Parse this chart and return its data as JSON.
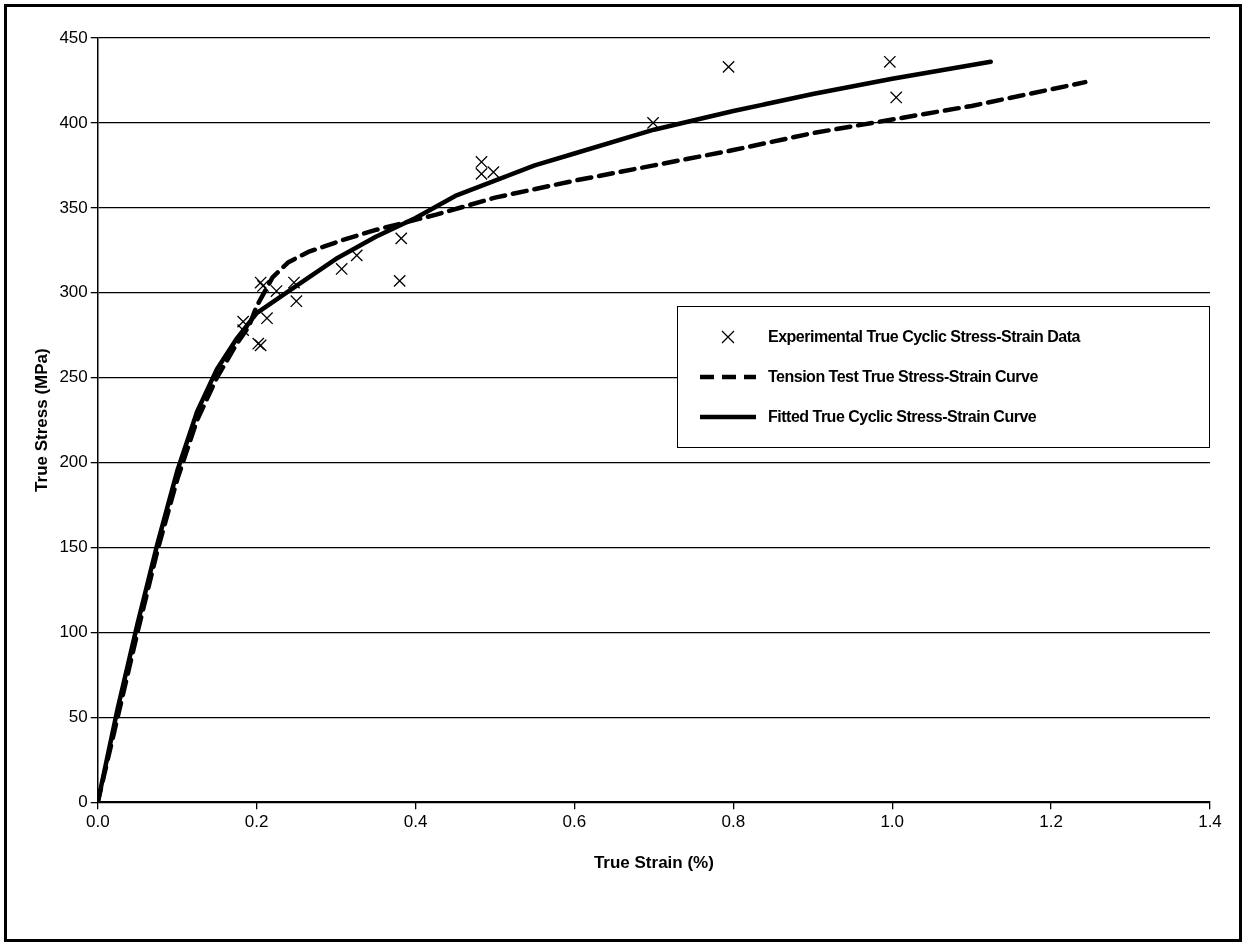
{
  "chart_data": {
    "type": "line",
    "xlabel": "True Strain (%)",
    "ylabel": "True Stress (MPa)",
    "xlim": [
      0,
      1.4
    ],
    "xticks": [
      {
        "value": 0,
        "label": "0.0"
      },
      0.2,
      0.4,
      0.6,
      0.8,
      {
        "value": 1,
        "label": "1.0"
      },
      1.2,
      1.4
    ],
    "ylim": [
      0,
      450
    ],
    "yticks": [
      0,
      50,
      100,
      150,
      200,
      250,
      300,
      350,
      400,
      450
    ],
    "grid": "y",
    "legend": "right",
    "series": [
      {
        "name": "Experimental True Cyclic Stress-Strain Data",
        "type": "scatter",
        "marker": "cross",
        "color": "#000000",
        "x": [
          0.205,
          0.208,
          0.225,
          0.247,
          0.25,
          0.183,
          0.183,
          0.213,
          0.202,
          0.205,
          0.307,
          0.326,
          0.382,
          0.38,
          0.483,
          0.483,
          0.498,
          0.699,
          0.794,
          0.997,
          1.005
        ],
        "values": [
          306,
          304,
          301,
          306,
          295,
          283,
          278,
          285,
          270,
          269,
          314,
          322,
          332,
          307,
          377,
          370,
          371,
          400,
          433,
          436,
          415
        ]
      },
      {
        "name": "Tension Test True Stress-Strain Curve",
        "line_style": "dashed",
        "color": "#000000",
        "x": [
          0,
          0.025,
          0.05,
          0.075,
          0.1,
          0.125,
          0.15,
          0.175,
          0.19,
          0.2,
          0.22,
          0.24,
          0.265,
          0.308,
          0.35,
          0.426,
          0.5,
          0.6,
          0.7,
          0.8,
          0.9,
          1.0,
          1.1,
          1.243
        ],
        "values": [
          0,
          50,
          100,
          148,
          190,
          225,
          250,
          270,
          280,
          292,
          309,
          318,
          324,
          331,
          337,
          346,
          356,
          366,
          375,
          384,
          394,
          402,
          410,
          424
        ]
      },
      {
        "name": "Fitted True Cyclic Stress-Strain Curve",
        "line_style": "solid",
        "color": "#000000",
        "x": [
          0,
          0.025,
          0.05,
          0.075,
          0.1,
          0.125,
          0.15,
          0.175,
          0.2,
          0.25,
          0.3,
          0.35,
          0.4,
          0.45,
          0.5,
          0.55,
          0.6,
          0.7,
          0.8,
          0.9,
          1.0,
          1.124
        ],
        "values": [
          0,
          55,
          105,
          152,
          195,
          230,
          255,
          273,
          288,
          304,
          320,
          333,
          344,
          357,
          366,
          375,
          382,
          396,
          407,
          417,
          426,
          436
        ]
      }
    ]
  }
}
